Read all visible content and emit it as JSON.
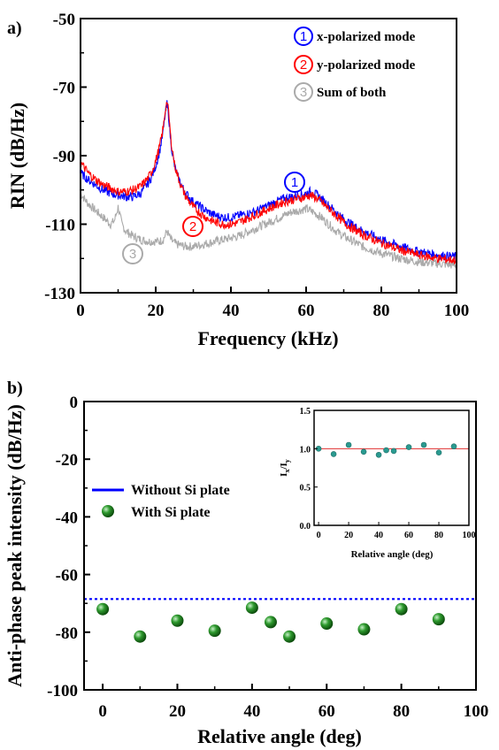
{
  "chart_data": [
    {
      "panel_label": "a)",
      "type": "line",
      "xlabel": "Frequency (kHz)",
      "ylabel": "RIN (dB/Hz)",
      "xlim": [
        0,
        100
      ],
      "ylim": [
        -130,
        -50
      ],
      "xticks": [
        0,
        20,
        40,
        60,
        80,
        100
      ],
      "yticks": [
        -130,
        -110,
        -90,
        -70,
        -50
      ],
      "grid": false,
      "legend_position": "top-right",
      "series": [
        {
          "name": "x-polarized mode",
          "marker_number": "1",
          "color": "#0000ff",
          "x": [
            0,
            2,
            4,
            6,
            8,
            10,
            12,
            14,
            16,
            18,
            19,
            20,
            21,
            22,
            22.5,
            23,
            23.5,
            24,
            25,
            26,
            27,
            28,
            30,
            32,
            34,
            36,
            38,
            40,
            42,
            44,
            46,
            48,
            50,
            52,
            54,
            56,
            58,
            60,
            61,
            62,
            63,
            64,
            66,
            68,
            70,
            72,
            75,
            80,
            85,
            90,
            95,
            100
          ],
          "y": [
            -95,
            -97,
            -98.5,
            -100,
            -101,
            -101.5,
            -102,
            -102,
            -101,
            -98,
            -96,
            -93,
            -89,
            -83,
            -78,
            -75,
            -79,
            -86,
            -93,
            -96.5,
            -99,
            -101,
            -103.5,
            -105,
            -106.5,
            -107.5,
            -108,
            -108,
            -107.5,
            -107,
            -106.5,
            -105.5,
            -104.5,
            -103.5,
            -102.5,
            -102,
            -101.5,
            -101,
            -100.5,
            -101,
            -101.5,
            -102.5,
            -104.5,
            -106.5,
            -108.5,
            -110,
            -112,
            -114.5,
            -116.5,
            -118,
            -119,
            -119.5
          ]
        },
        {
          "name": "y-polarized mode",
          "marker_number": "2",
          "color": "#ff0000",
          "x": [
            0,
            2,
            4,
            6,
            8,
            10,
            12,
            14,
            16,
            18,
            19,
            20,
            21,
            22,
            22.5,
            23,
            23.5,
            24,
            25,
            26,
            27,
            28,
            30,
            32,
            34,
            36,
            38,
            40,
            42,
            44,
            46,
            48,
            50,
            52,
            54,
            56,
            58,
            60,
            61,
            62,
            63,
            64,
            66,
            68,
            70,
            72,
            75,
            80,
            85,
            90,
            95,
            100
          ],
          "y": [
            -92,
            -95,
            -97,
            -98.5,
            -99.5,
            -100.5,
            -100.5,
            -100,
            -99,
            -96.5,
            -94.5,
            -91.5,
            -87.5,
            -82,
            -77,
            -74,
            -78,
            -85,
            -92.5,
            -96.5,
            -99.5,
            -102,
            -105,
            -107,
            -108.5,
            -109.5,
            -110,
            -110,
            -109.5,
            -108.5,
            -107.5,
            -106.5,
            -105.5,
            -104.5,
            -103.5,
            -103,
            -102.5,
            -102,
            -101.5,
            -102,
            -102.5,
            -103.5,
            -105.5,
            -107.5,
            -109.5,
            -111,
            -113,
            -115.5,
            -117.5,
            -119,
            -120,
            -120.5
          ]
        },
        {
          "name": "Sum of both",
          "marker_number": "3",
          "color": "#aaaaaa",
          "x": [
            0,
            2,
            4,
            6,
            8,
            9,
            10,
            11,
            12,
            14,
            16,
            18,
            20,
            21,
            22,
            23,
            24,
            25,
            26,
            28,
            30,
            32,
            34,
            36,
            38,
            40,
            42,
            44,
            46,
            48,
            50,
            52,
            54,
            56,
            58,
            60,
            62,
            64,
            66,
            68,
            70,
            75,
            80,
            85,
            90,
            95,
            100
          ],
          "y": [
            -101,
            -104,
            -106,
            -108,
            -110,
            -109,
            -105,
            -110,
            -112,
            -113.5,
            -114.5,
            -115,
            -115,
            -115,
            -114.5,
            -112,
            -114.5,
            -115.5,
            -116,
            -116.5,
            -116.5,
            -116,
            -115.5,
            -115,
            -114.5,
            -114,
            -113.5,
            -112.5,
            -111.5,
            -110.5,
            -109.5,
            -108.5,
            -107.5,
            -106.5,
            -106,
            -105.5,
            -106.5,
            -108,
            -110,
            -112,
            -113.5,
            -116.5,
            -118.5,
            -120,
            -121,
            -121.5,
            -122
          ]
        }
      ]
    },
    {
      "panel_label": "b)",
      "type": "scatter",
      "xlabel": "Relative angle (deg)",
      "ylabel": "Anti-phase peak intensity (dB/Hz)",
      "xlim": [
        -5,
        100
      ],
      "ylim": [
        -100,
        0
      ],
      "xticks": [
        0,
        20,
        40,
        60,
        80,
        100
      ],
      "yticks": [
        -100,
        -80,
        -60,
        -40,
        -20,
        0
      ],
      "grid": false,
      "legend_position": "center-left",
      "series": [
        {
          "name": "Without Si plate",
          "style": "dashed-line",
          "color": "#0000ff",
          "y": -68.5
        },
        {
          "name": "With Si plate",
          "style": "sphere-markers",
          "color": "#1a8a1a",
          "x": [
            0,
            10,
            20,
            30,
            40,
            45,
            50,
            60,
            70,
            80,
            90
          ],
          "y": [
            -72,
            -81.5,
            -76,
            -79.5,
            -71.5,
            -76.5,
            -81.5,
            -77,
            -79,
            -72,
            -75.5
          ]
        }
      ],
      "inset": {
        "type": "scatter",
        "xlabel": "Relative angle (deg)",
        "ylabel": "I",
        "ylabel_sub1": "x",
        "ylabel_mid": "/I",
        "ylabel_sub2": "y",
        "xlim": [
          -3,
          100
        ],
        "ylim": [
          0.0,
          1.5
        ],
        "xticks": [
          0,
          20,
          40,
          60,
          80,
          100
        ],
        "yticks": [
          0.0,
          0.5,
          1.0,
          1.5
        ],
        "reference_line": 1.0,
        "reference_color": "#e03030",
        "marker_color": "#2a9a90",
        "x": [
          0,
          10,
          20,
          30,
          40,
          45,
          50,
          60,
          70,
          80,
          90
        ],
        "y": [
          1.0,
          0.93,
          1.05,
          0.96,
          0.92,
          0.98,
          0.97,
          1.02,
          1.05,
          0.95,
          1.03
        ]
      }
    }
  ]
}
